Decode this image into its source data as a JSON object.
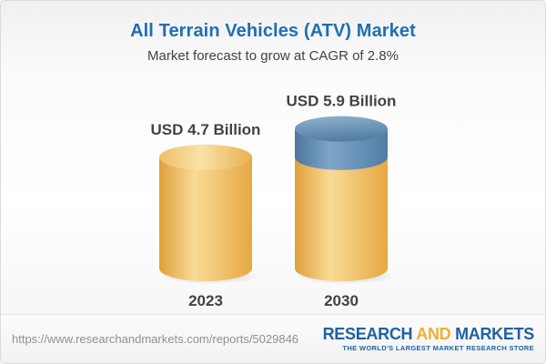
{
  "header": {
    "title": "All Terrain Vehicles (ATV) Market",
    "subtitle": "Market forecast to grow at CAGR of 2.8%"
  },
  "chart_data": {
    "type": "bar",
    "variant": "3d-cylinder",
    "title": "All Terrain Vehicles (ATV) Market",
    "subtitle": "Market forecast to grow at CAGR of 2.8%",
    "unit": "USD Billion",
    "cagr": "2.8%",
    "categories": [
      "2023",
      "2030"
    ],
    "values": [
      4.7,
      5.9
    ],
    "xlabel": "",
    "ylabel": "",
    "legend": false,
    "grid": false,
    "bars": [
      {
        "year": "2023",
        "value": 4.7,
        "label": "USD 4.7 Billion",
        "segments": [
          {
            "name": "base",
            "value": 4.7,
            "color": "#F2C464"
          }
        ]
      },
      {
        "year": "2030",
        "value": 5.9,
        "label": "USD 5.9 Billion",
        "segments": [
          {
            "name": "base",
            "value": 4.7,
            "color": "#F2C464"
          },
          {
            "name": "growth",
            "value": 1.2,
            "color": "#5D88AE"
          }
        ]
      }
    ]
  },
  "footer": {
    "url": "https://www.researchandmarkets.com/reports/5029846",
    "logo": {
      "part1": "RESEARCH",
      "part2": "AND",
      "part3": "MARKETS",
      "tagline": "THE WORLD'S LARGEST MARKET RESEARCH STORE"
    }
  },
  "colors": {
    "title_blue": "#1E6FB4",
    "text_dark": "#3F4347",
    "bar_yellow": "#F2C464",
    "bar_blue": "#5D88AE",
    "logo_blue": "#2061A3",
    "logo_gold": "#F0B02E",
    "url_gray": "#8F8F8F",
    "card_border": "#DBDBDB"
  }
}
